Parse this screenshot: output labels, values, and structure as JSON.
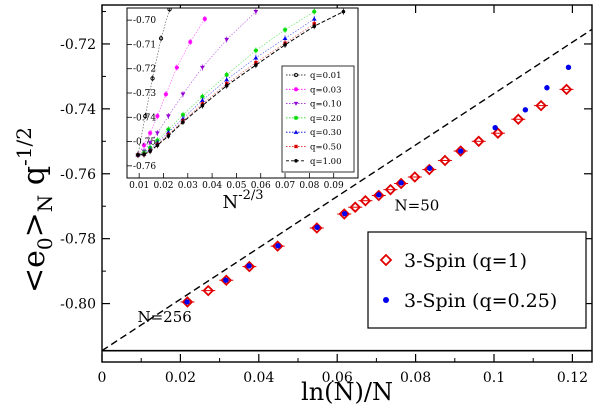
{
  "chart_data": [
    {
      "type": "scatter",
      "id": "main",
      "xlabel": "ln(N)/N",
      "ylabel": "<e0>N q-1/2",
      "ylabel_parts": {
        "e": "<e",
        "sub0": "0",
        "close": ">",
        "subN": "N",
        "q": " q",
        "sup": "-1/2"
      },
      "xlim": [
        0,
        0.125
      ],
      "ylim": [
        -0.818,
        -0.708
      ],
      "xticks": [
        0,
        0.02,
        0.04,
        0.06,
        0.08,
        0.1,
        0.12
      ],
      "xtick_labels": [
        "0",
        "0.02",
        "0.04",
        "0.06",
        "0.08",
        "0.1",
        "0.12"
      ],
      "yticks": [
        -0.8,
        -0.78,
        -0.76,
        -0.74,
        -0.72
      ],
      "ytick_labels": [
        "-0.80",
        "-0.78",
        "-0.76",
        "-0.74",
        "-0.72"
      ],
      "series": [
        {
          "name": "3-Spin (q=1)",
          "marker": "diamond-open",
          "color": "#e00000",
          "x": [
            0.0218,
            0.0271,
            0.0317,
            0.0376,
            0.0448,
            0.0548,
            0.0618,
            0.0646,
            0.0672,
            0.0706,
            0.0736,
            0.0763,
            0.0798,
            0.0835,
            0.0875,
            0.0915,
            0.0961,
            0.101,
            0.1062,
            0.112,
            0.1185
          ],
          "y": [
            -0.7995,
            -0.796,
            -0.7928,
            -0.7886,
            -0.7823,
            -0.7767,
            -0.7724,
            -0.7703,
            -0.7683,
            -0.7667,
            -0.7649,
            -0.763,
            -0.761,
            -0.7587,
            -0.7559,
            -0.753,
            -0.75,
            -0.7475,
            -0.7432,
            -0.739,
            -0.734
          ]
        },
        {
          "name": "3-Spin (q=0.25)",
          "marker": "circle-filled",
          "color": "#0000ee",
          "x": [
            0.0217,
            0.0316,
            0.0375,
            0.0449,
            0.0549,
            0.0619,
            0.0706,
            0.0763,
            0.0836,
            0.0915,
            0.1003,
            0.108,
            0.1135,
            0.119
          ],
          "y": [
            -0.7995,
            -0.7928,
            -0.7884,
            -0.7822,
            -0.7765,
            -0.7723,
            -0.7665,
            -0.7628,
            -0.7583,
            -0.753,
            -0.7458,
            -0.7403,
            -0.7335,
            -0.7272
          ]
        }
      ],
      "fit_line": {
        "x": [
          0,
          0.125
        ],
        "y": [
          -0.8145,
          -0.7155
        ],
        "style": "dashed"
      },
      "asymptote_y": -0.8145,
      "annotations": [
        {
          "text": "N=256",
          "x": 0.0218,
          "y": -0.7995
        },
        {
          "text": "N=50",
          "x": 0.0782,
          "y": -0.764
        }
      ],
      "legend": {
        "position": "bottom-right",
        "entries": [
          "3-Spin (q=1)",
          "3-Spin (q=0.25)"
        ]
      }
    },
    {
      "type": "line",
      "id": "inset",
      "xlabel": "N-2/3",
      "xlabel_parts": {
        "base": "N",
        "sup": "-2/3"
      },
      "xlim": [
        0.005,
        0.1
      ],
      "ylim": [
        -0.765,
        -0.695
      ],
      "xticks": [
        0.01,
        0.02,
        0.03,
        0.04,
        0.05,
        0.06,
        0.07,
        0.08,
        0.09
      ],
      "xtick_labels": [
        "0.01",
        "0.02",
        "0.03",
        "0.04",
        "0.05",
        "0.06",
        "0.07",
        "0.08",
        "0.09"
      ],
      "yticks": [
        -0.76,
        -0.75,
        -0.74,
        -0.73,
        -0.72,
        -0.71,
        -0.7
      ],
      "ytick_labels": [
        "-0.76",
        "-0.75",
        "-0.74",
        "-0.73",
        "-0.72",
        "-0.71",
        "-0.70"
      ],
      "series": [
        {
          "name": "q=0.01",
          "marker": "circle-open",
          "color": "#000000",
          "x": [
            0.0095,
            0.0125,
            0.0155,
            0.019,
            0.0225
          ],
          "y": [
            -0.7555,
            -0.7395,
            -0.724,
            -0.7075,
            -0.6955
          ]
        },
        {
          "name": "q=0.03",
          "marker": "star",
          "color": "#ff00ff",
          "x": [
            0.0095,
            0.012,
            0.0145,
            0.0175,
            0.021,
            0.0255,
            0.031,
            0.037
          ],
          "y": [
            -0.7555,
            -0.7515,
            -0.7465,
            -0.7395,
            -0.7305,
            -0.7195,
            -0.709,
            -0.6995
          ]
        },
        {
          "name": "q=0.10",
          "marker": "triangle-down",
          "color": "#9400d3",
          "x": [
            0.0095,
            0.012,
            0.0145,
            0.0175,
            0.022,
            0.028,
            0.036,
            0.046,
            0.058
          ],
          "y": [
            -0.7555,
            -0.754,
            -0.7505,
            -0.7465,
            -0.7395,
            -0.7305,
            -0.7195,
            -0.708,
            -0.6965
          ]
        },
        {
          "name": "q=0.20",
          "marker": "star",
          "color": "#00dd00",
          "x": [
            0.0095,
            0.012,
            0.0145,
            0.0175,
            0.022,
            0.028,
            0.036,
            0.046,
            0.058,
            0.07,
            0.082
          ],
          "y": [
            -0.7555,
            -0.7545,
            -0.7525,
            -0.7495,
            -0.745,
            -0.739,
            -0.7315,
            -0.7225,
            -0.7125,
            -0.704,
            -0.6965
          ]
        },
        {
          "name": "q=0.30",
          "marker": "triangle-up",
          "color": "#0000ee",
          "x": [
            0.0095,
            0.012,
            0.0145,
            0.0175,
            0.022,
            0.028,
            0.036,
            0.046,
            0.058,
            0.07,
            0.082
          ],
          "y": [
            -0.7555,
            -0.755,
            -0.7532,
            -0.7505,
            -0.7462,
            -0.7405,
            -0.733,
            -0.7245,
            -0.7155,
            -0.7075,
            -0.6995
          ]
        },
        {
          "name": "q=0.50",
          "marker": "square",
          "color": "#dd0000",
          "x": [
            0.0095,
            0.012,
            0.0145,
            0.0175,
            0.022,
            0.028,
            0.036,
            0.046,
            0.058,
            0.07,
            0.082
          ],
          "y": [
            -0.7555,
            -0.7553,
            -0.7538,
            -0.7512,
            -0.7472,
            -0.7415,
            -0.7345,
            -0.7262,
            -0.7175,
            -0.7095,
            -0.7015
          ]
        },
        {
          "name": "q=1.00",
          "marker": "circle-filled",
          "color": "#000000",
          "style": "dashed",
          "x": [
            0.0095,
            0.012,
            0.0145,
            0.0175,
            0.022,
            0.028,
            0.036,
            0.046,
            0.058,
            0.07,
            0.082,
            0.094
          ],
          "y": [
            -0.7555,
            -0.7553,
            -0.754,
            -0.7515,
            -0.7477,
            -0.742,
            -0.7352,
            -0.727,
            -0.7185,
            -0.7102,
            -0.7025,
            -0.6965
          ]
        }
      ],
      "legend": {
        "position": "right",
        "entries": [
          "q=0.01",
          "q=0.03",
          "q=0.10",
          "q=0.20",
          "q=0.30",
          "q=0.50",
          "q=1.00"
        ]
      }
    }
  ]
}
